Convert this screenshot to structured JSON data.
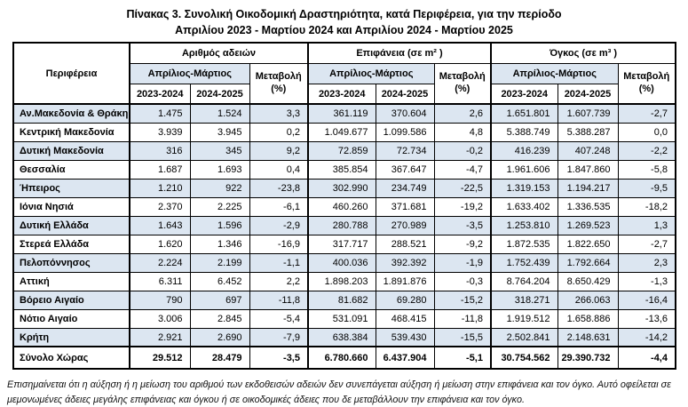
{
  "title": {
    "line1": "Πίνακας 3. Συνολική Οικοδομική Δραστηριότητα, κατά Περιφέρεια, για την περίοδο",
    "line2": "Απριλίου 2023 - Μαρτίου 2024 και Απριλίου 2024 - Μαρτίου 2025"
  },
  "table": {
    "region_header": "Περιφέρεια",
    "period_label": "Απρίλιος-Μάρτιος",
    "change_line1": "Μεταβολή",
    "change_line2": "(%)",
    "year1": "2023-2024",
    "year2": "2024-2025",
    "groups": [
      {
        "label": "Αριθμός αδειών"
      },
      {
        "label": "Επιφάνεια (σε m² )"
      },
      {
        "label": "Όγκος (σε m³ )"
      }
    ],
    "rows": [
      {
        "region": "Αν.Μακεδονία & Θράκη",
        "permits": [
          "1.475",
          "1.524",
          "3,3"
        ],
        "surface": [
          "361.119",
          "370.604",
          "2,6"
        ],
        "volume": [
          "1.651.801",
          "1.607.739",
          "-2,7"
        ]
      },
      {
        "region": "Κεντρική Μακεδονία",
        "permits": [
          "3.939",
          "3.945",
          "0,2"
        ],
        "surface": [
          "1.049.677",
          "1.099.586",
          "4,8"
        ],
        "volume": [
          "5.388.749",
          "5.388.287",
          "0,0"
        ]
      },
      {
        "region": "Δυτική Μακεδονία",
        "permits": [
          "316",
          "345",
          "9,2"
        ],
        "surface": [
          "72.859",
          "72.734",
          "-0,2"
        ],
        "volume": [
          "416.239",
          "407.248",
          "-2,2"
        ]
      },
      {
        "region": "Θεσσαλία",
        "permits": [
          "1.687",
          "1.693",
          "0,4"
        ],
        "surface": [
          "385.854",
          "367.647",
          "-4,7"
        ],
        "volume": [
          "1.961.606",
          "1.847.860",
          "-5,8"
        ]
      },
      {
        "region": "Ήπειρος",
        "permits": [
          "1.210",
          "922",
          "-23,8"
        ],
        "surface": [
          "302.990",
          "234.749",
          "-22,5"
        ],
        "volume": [
          "1.319.153",
          "1.194.217",
          "-9,5"
        ]
      },
      {
        "region": "Ιόνια Νησιά",
        "permits": [
          "2.370",
          "2.225",
          "-6,1"
        ],
        "surface": [
          "460.260",
          "371.681",
          "-19,2"
        ],
        "volume": [
          "1.633.402",
          "1.336.535",
          "-18,2"
        ]
      },
      {
        "region": "Δυτική Ελλάδα",
        "permits": [
          "1.643",
          "1.596",
          "-2,9"
        ],
        "surface": [
          "280.788",
          "270.989",
          "-3,5"
        ],
        "volume": [
          "1.253.810",
          "1.269.523",
          "1,3"
        ]
      },
      {
        "region": "Στερεά Ελλάδα",
        "permits": [
          "1.620",
          "1.346",
          "-16,9"
        ],
        "surface": [
          "317.717",
          "288.521",
          "-9,2"
        ],
        "volume": [
          "1.872.535",
          "1.822.650",
          "-2,7"
        ]
      },
      {
        "region": "Πελοπόννησος",
        "permits": [
          "2.224",
          "2.199",
          "-1,1"
        ],
        "surface": [
          "400.036",
          "392.392",
          "-1,9"
        ],
        "volume": [
          "1.752.439",
          "1.792.664",
          "2,3"
        ]
      },
      {
        "region": "Αττική",
        "permits": [
          "6.311",
          "6.452",
          "2,2"
        ],
        "surface": [
          "1.898.203",
          "1.891.876",
          "-0,3"
        ],
        "volume": [
          "8.764.204",
          "8.650.429",
          "-1,3"
        ]
      },
      {
        "region": "Βόρειο Αιγαίο",
        "permits": [
          "790",
          "697",
          "-11,8"
        ],
        "surface": [
          "81.682",
          "69.280",
          "-15,2"
        ],
        "volume": [
          "318.271",
          "266.063",
          "-16,4"
        ]
      },
      {
        "region": "Νότιο Αιγαίο",
        "permits": [
          "3.006",
          "2.845",
          "-5,4"
        ],
        "surface": [
          "531.091",
          "468.415",
          "-11,8"
        ],
        "volume": [
          "1.919.512",
          "1.658.886",
          "-13,6"
        ]
      },
      {
        "region": "Κρήτη",
        "permits": [
          "2.921",
          "2.690",
          "-7,9"
        ],
        "surface": [
          "638.384",
          "539.430",
          "-15,5"
        ],
        "volume": [
          "2.502.841",
          "2.148.631",
          "-14,2"
        ]
      }
    ],
    "total": {
      "region": "Σύνολο Χώρας",
      "permits": [
        "29.512",
        "28.479",
        "-3,5"
      ],
      "surface": [
        "6.780.660",
        "6.437.904",
        "-5,1"
      ],
      "volume": [
        "30.754.562",
        "29.390.732",
        "-4,4"
      ]
    }
  },
  "footnote": "Επισημαίνεται ότι η αύξηση ή η μείωση του αριθμού των εκδοθεισών αδειών δεν συνεπάγεται αύξηση ή μείωση στην επιφάνεια και τον όγκο. Αυτό οφείλεται σε μεμονωμένες άδειες μεγάλης επιφάνειας και όγκου ή σε οικοδομικές άδειες που δε μεταβάλλουν την επιφάνεια και τον όγκο.",
  "colors": {
    "stripe_blue": "#dce6f1",
    "border": "#000000",
    "background": "#ffffff"
  }
}
